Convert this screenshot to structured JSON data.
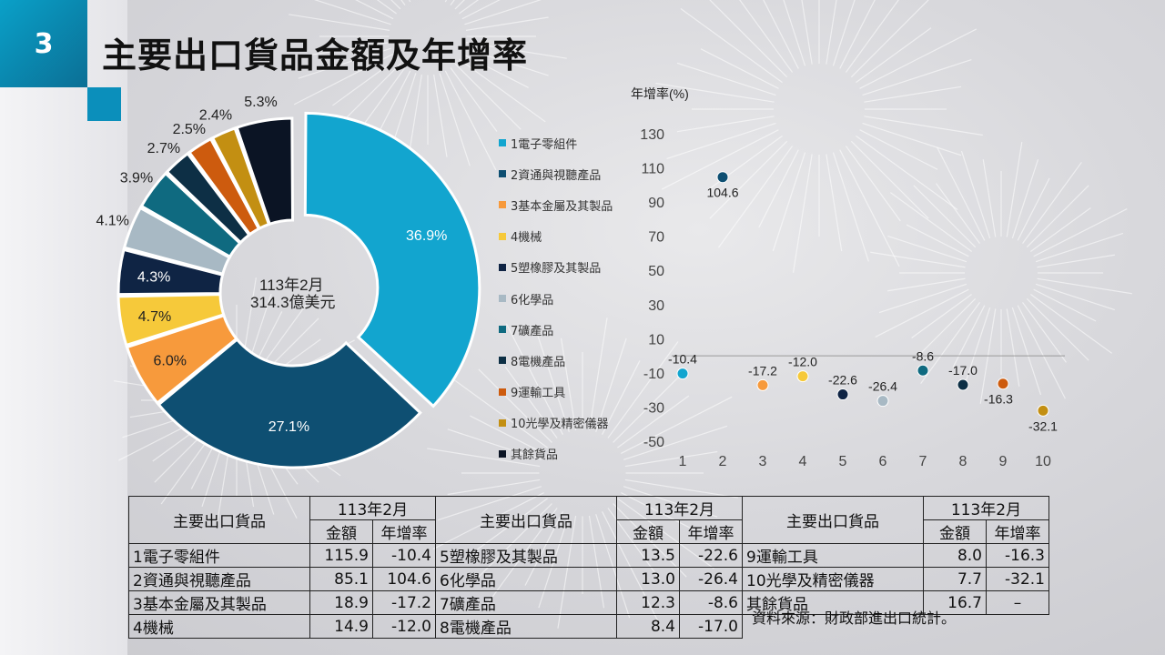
{
  "slide": {
    "number": "3",
    "title": "主要出口貨品金額及年增率"
  },
  "donut": {
    "center_line1": "113年2月",
    "center_line2": "314.3億美元"
  },
  "legend": [
    {
      "label": "1電子零組件",
      "color": "#12a5cf"
    },
    {
      "label": "2資通與視聽產品",
      "color": "#0e4f72"
    },
    {
      "label": "3基本金屬及其製品",
      "color": "#f79a3c"
    },
    {
      "label": "4機械",
      "color": "#f6c93a"
    },
    {
      "label": "5塑橡膠及其製品",
      "color": "#0f2444"
    },
    {
      "label": "6化學品",
      "color": "#a8b9c4"
    },
    {
      "label": "7礦產品",
      "color": "#0f6a80"
    },
    {
      "label": "8電機產品",
      "color": "#0d2f45"
    },
    {
      "label": "9運輸工具",
      "color": "#cd5b0e"
    },
    {
      "label": "10光學及精密儀器",
      "color": "#c38f12"
    },
    {
      "label": "其餘貨品",
      "color": "#0b1424"
    }
  ],
  "chart_data": [
    {
      "type": "pie",
      "categories": [
        "1電子零組件",
        "2資通與視聽產品",
        "3基本金屬及其製品",
        "4機械",
        "5塑橡膠及其製品",
        "6化學品",
        "7礦產品",
        "8電機產品",
        "9運輸工具",
        "10光學及精密儀器",
        "其餘貨品"
      ],
      "values": [
        36.9,
        27.1,
        6.0,
        4.7,
        4.3,
        4.1,
        3.9,
        2.7,
        2.5,
        2.4,
        5.3
      ],
      "labels": [
        "36.9%",
        "27.1%",
        "6.0%",
        "4.7%",
        "4.3%",
        "4.1%",
        "3.9%",
        "2.7%",
        "2.5%",
        "2.4%",
        "5.3%"
      ]
    },
    {
      "type": "scatter",
      "ylabel": "年增率(%)",
      "x": [
        1,
        2,
        3,
        4,
        5,
        6,
        7,
        8,
        9,
        10
      ],
      "y": [
        -10.4,
        104.6,
        -17.2,
        -12.0,
        -22.6,
        -26.4,
        -8.6,
        -17.0,
        -16.3,
        -32.1
      ],
      "point_labels": [
        "-10.4",
        "104.6",
        "-17.2",
        "-12.0",
        "-22.6",
        "-26.4",
        "-8.6",
        "-17.0",
        "-16.3",
        "-32.1"
      ],
      "ylim": [
        -50,
        130
      ],
      "yticks": [
        "130",
        "110",
        "90",
        "70",
        "50",
        "30",
        "10",
        "-10",
        "-30",
        "-50"
      ],
      "xticks": [
        "1",
        "2",
        "3",
        "4",
        "5",
        "6",
        "7",
        "8",
        "9",
        "10"
      ]
    }
  ],
  "table": {
    "col_head": "主要出口貨品",
    "period": "113年2月",
    "amount": "金額",
    "growth": "年增率",
    "rows": [
      [
        [
          "1電子零組件",
          "115.9",
          "-10.4"
        ],
        [
          "5塑橡膠及其製品",
          "13.5",
          "-22.6"
        ],
        [
          "9運輸工具",
          "8.0",
          "-16.3"
        ]
      ],
      [
        [
          "2資通與視聽產品",
          "85.1",
          "104.6"
        ],
        [
          "6化學品",
          "13.0",
          "-26.4"
        ],
        [
          "10光學及精密儀器",
          "7.7",
          "-32.1"
        ]
      ],
      [
        [
          "3基本金屬及其製品",
          "18.9",
          "-17.2"
        ],
        [
          "7礦產品",
          "12.3",
          "-8.6"
        ],
        [
          "其餘貨品",
          "16.7",
          "–"
        ]
      ],
      [
        [
          "4機械",
          "14.9",
          "-12.0"
        ],
        [
          "8電機產品",
          "8.4",
          "-17.0"
        ]
      ]
    ],
    "source": "資料來源：財政部進出口統計。"
  }
}
